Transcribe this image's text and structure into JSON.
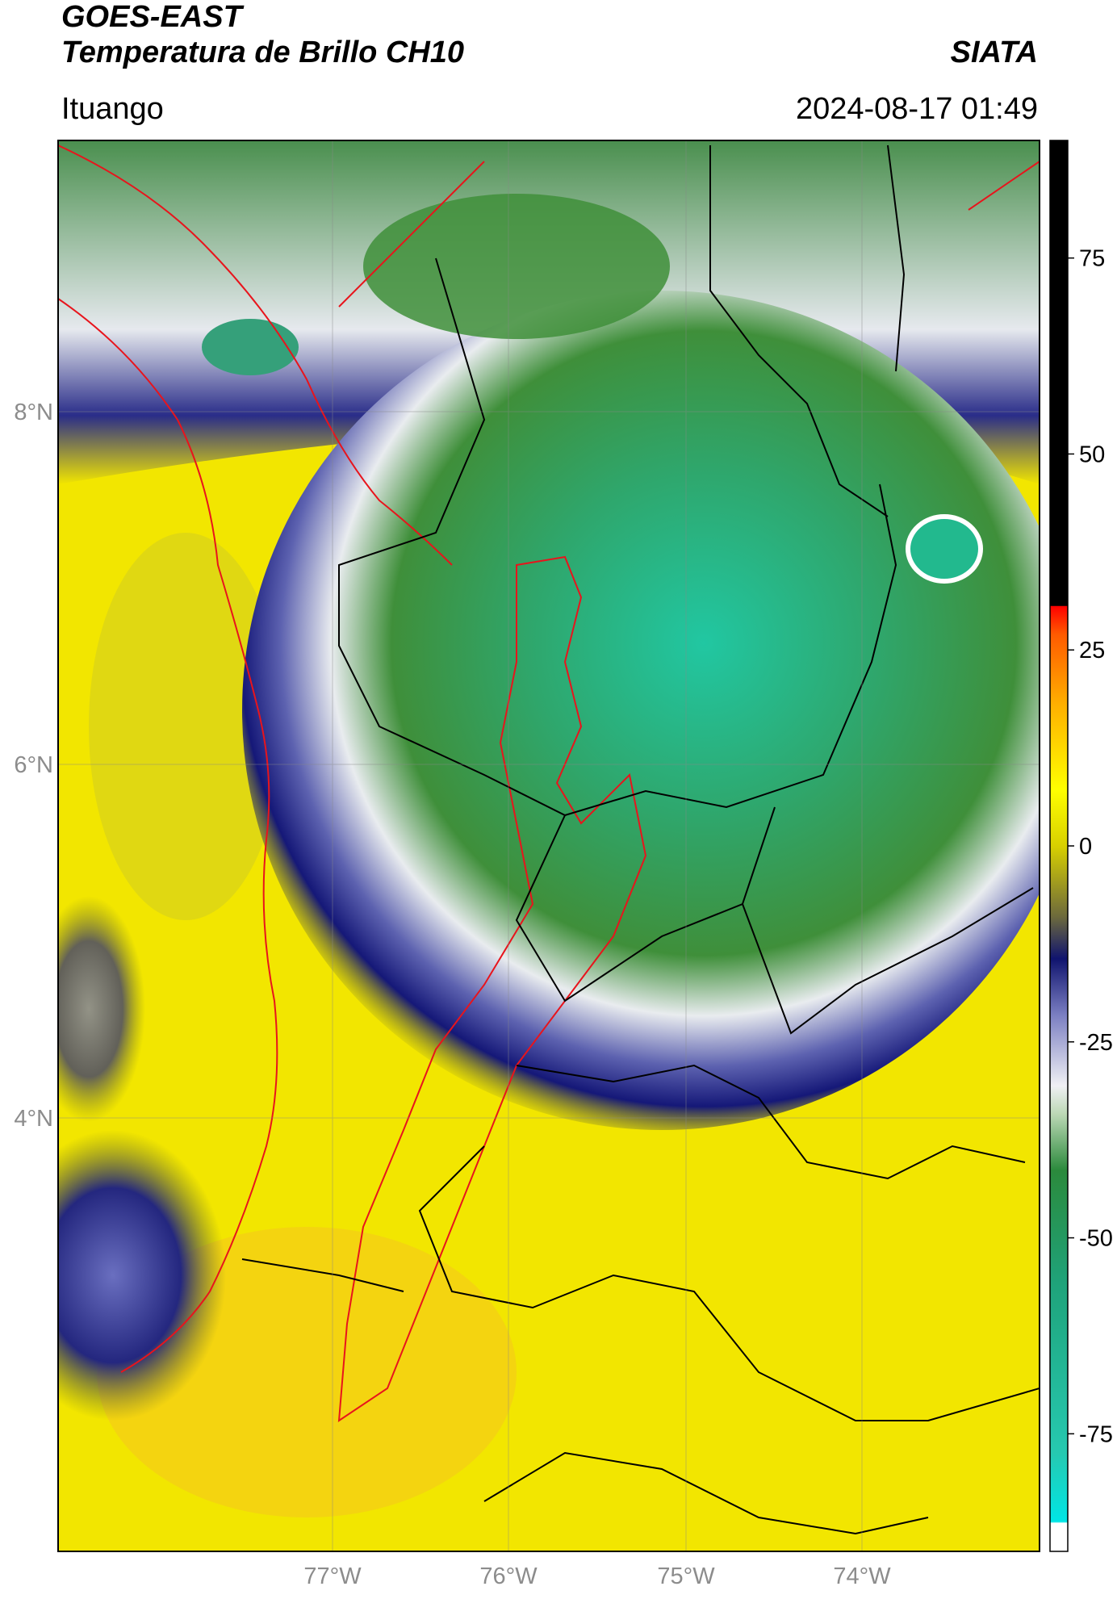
{
  "header": {
    "title_line1": "GOES-EAST",
    "title_line2": "Temperatura de Brillo CH10",
    "organization": "SIATA",
    "region": "Ituango",
    "timestamp": "2024-08-17 01:49"
  },
  "map": {
    "lat_ticks": [
      {
        "value": 8,
        "label": "8°N"
      },
      {
        "value": 6,
        "label": "6°N"
      },
      {
        "value": 4,
        "label": "4°N"
      }
    ],
    "lon_ticks": [
      {
        "value": -77,
        "label": "77°W"
      },
      {
        "value": -76,
        "label": "76°W"
      },
      {
        "value": -75,
        "label": "75°W"
      },
      {
        "value": -74,
        "label": "74°W"
      }
    ],
    "colors": {
      "warm_yellow": "#f2e600",
      "cloud_green": "#3f8f3a",
      "cloud_teal": "#22b98e",
      "cloud_edge_blue": "#1b1d7c",
      "coastline": "#e8141c",
      "boundaries": "#000000"
    }
  },
  "colorbar": {
    "ticks": [
      {
        "value": 75,
        "label": "75"
      },
      {
        "value": 50,
        "label": "50"
      },
      {
        "value": 25,
        "label": "25"
      },
      {
        "value": 0,
        "label": "0"
      },
      {
        "value": -25,
        "label": "-25"
      },
      {
        "value": -50,
        "label": "-50"
      },
      {
        "value": -75,
        "label": "-75"
      }
    ],
    "min": -90,
    "max": 90
  }
}
